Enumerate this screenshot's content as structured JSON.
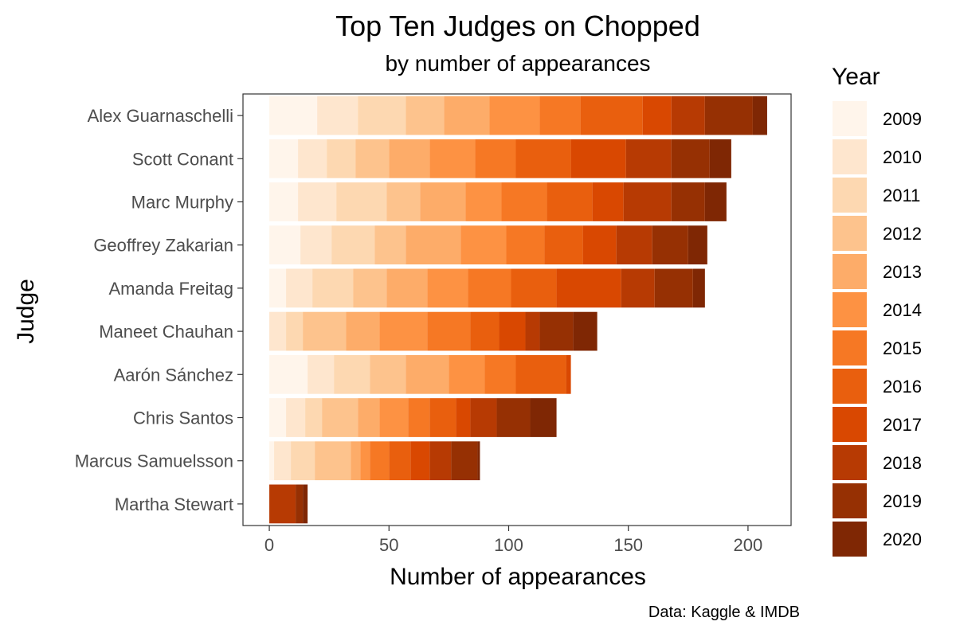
{
  "chart_data": {
    "type": "bar",
    "orientation": "horizontal",
    "stacked": true,
    "title": "Top Ten Judges on Chopped",
    "subtitle": "by number of appearances",
    "xlabel": "Number of appearances",
    "ylabel": "Judge",
    "caption": "Data: Kaggle & IMDB",
    "xlim": [
      -11,
      218
    ],
    "xticks": [
      0,
      50,
      100,
      150,
      200
    ],
    "grid": false,
    "legend_title": "Year",
    "legend_position": "right",
    "series_names": [
      "2009",
      "2010",
      "2011",
      "2012",
      "2013",
      "2014",
      "2015",
      "2016",
      "2017",
      "2018",
      "2019",
      "2020"
    ],
    "colors": [
      "#fff5eb",
      "#fee6ce",
      "#fdd8b1",
      "#fdc38d",
      "#fdac69",
      "#fd9243",
      "#f67824",
      "#e95f0e",
      "#d94801",
      "#b73a03",
      "#963003",
      "#7f2704"
    ],
    "categories": [
      "Alex Guarnaschelli",
      "Scott Conant",
      "Marc Murphy",
      "Geoffrey Zakarian",
      "Amanda Freitag",
      "Maneet Chauhan",
      "Aarón Sánchez",
      "Chris Santos",
      "Marcus Samuelsson",
      "Martha Stewart"
    ],
    "values": [
      [
        20,
        17,
        20,
        16,
        19,
        21,
        17,
        26,
        12,
        14,
        20,
        6
      ],
      [
        12,
        12,
        12,
        14,
        17,
        19,
        17,
        23,
        23,
        19,
        16,
        9
      ],
      [
        12,
        16,
        21,
        14,
        19,
        15,
        19,
        19,
        13,
        20,
        14,
        9
      ],
      [
        13,
        13,
        18,
        13,
        23,
        19,
        16,
        16,
        14,
        15,
        15,
        8
      ],
      [
        7,
        11,
        17,
        14,
        17,
        17,
        18,
        19,
        27,
        14,
        16,
        5
      ],
      [
        0,
        7,
        7,
        18,
        14,
        20,
        18,
        12,
        11,
        6,
        14,
        10
      ],
      [
        16,
        11,
        15,
        15,
        18,
        15,
        13,
        21,
        2,
        0,
        0,
        0
      ],
      [
        7,
        8,
        7,
        15,
        9,
        12,
        9,
        11,
        6,
        11,
        14,
        11
      ],
      [
        2,
        7,
        10,
        15,
        4,
        4,
        8,
        9,
        8,
        9,
        11,
        1
      ],
      [
        0,
        0,
        0,
        0,
        0,
        0,
        0,
        0,
        0,
        11,
        3,
        2
      ]
    ]
  }
}
